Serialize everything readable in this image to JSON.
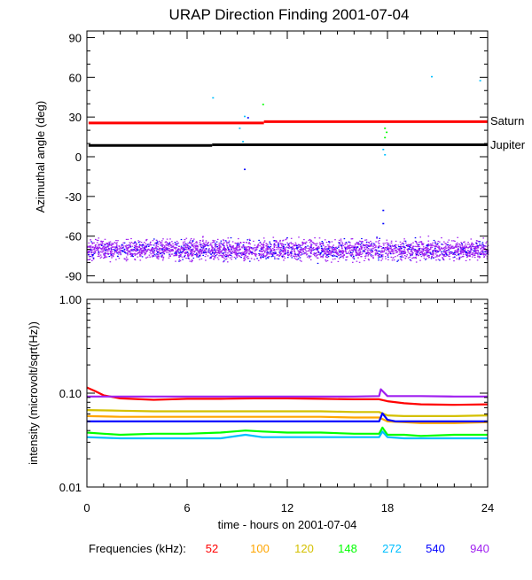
{
  "chart_data": [
    {
      "type": "scatter",
      "title": "URAP Direction Finding  2001-07-04",
      "xlabel": "",
      "ylabel": "Azimuthal angle (deg)",
      "xlim": [
        0,
        24
      ],
      "ylim": [
        -95,
        95
      ],
      "x_ticks": [
        0,
        6,
        12,
        18,
        24
      ],
      "y_ticks": [
        90,
        60,
        30,
        0,
        -30,
        -60,
        -90
      ],
      "y_tick_labels": [
        "90",
        "60",
        "30",
        "0",
        "-30",
        "-60",
        "-90"
      ],
      "reference_lines": [
        {
          "name": "Saturn",
          "color": "#ff0000",
          "segments": [
            {
              "x": [
                0.1,
                10.6
              ],
              "y": 25.5
            },
            {
              "x": 10.6,
              "y_end": 26.5,
              "x_end": 24
            }
          ]
        },
        {
          "name": "Jupiter",
          "color": "#000000",
          "segments": [
            {
              "x": [
                0.1,
                7.5
              ],
              "y": 8.5
            },
            {
              "x": 7.5,
              "y_end": 9,
              "x_end": 24
            }
          ]
        }
      ],
      "reference_line_labels": [
        "Saturn",
        "Jupiter"
      ],
      "band": {
        "description_range_deg": [
          -80,
          -60
        ],
        "center_deg": -70,
        "colors": [
          "#a020f0",
          "#0000ff"
        ]
      },
      "outliers": [
        {
          "x": 7.5,
          "y": 45,
          "color": "#00bfff"
        },
        {
          "x": 10.5,
          "y": 40,
          "color": "#00ff00"
        },
        {
          "x": 9.4,
          "y": 31,
          "color": "#00bfff"
        },
        {
          "x": 9.6,
          "y": 30,
          "color": "#0000ff"
        },
        {
          "x": 9.1,
          "y": 22,
          "color": "#00bfff"
        },
        {
          "x": 9.3,
          "y": 12,
          "color": "#00bfff"
        },
        {
          "x": 9.4,
          "y": -9,
          "color": "#0000ff"
        },
        {
          "x": 20.6,
          "y": 61,
          "color": "#00bfff"
        },
        {
          "x": 23.5,
          "y": 58,
          "color": "#00bfff"
        },
        {
          "x": 17.8,
          "y": 22,
          "color": "#00ff00"
        },
        {
          "x": 17.9,
          "y": 19,
          "color": "#00ff00"
        },
        {
          "x": 17.8,
          "y": 15,
          "color": "#00ff00"
        },
        {
          "x": 17.7,
          "y": 6,
          "color": "#00bfff"
        },
        {
          "x": 17.8,
          "y": 2,
          "color": "#00bfff"
        },
        {
          "x": 17.7,
          "y": -40,
          "color": "#0000ff"
        },
        {
          "x": 17.7,
          "y": -50,
          "color": "#0000ff"
        }
      ]
    },
    {
      "type": "line",
      "title": "",
      "xlabel": "time - hours on 2001-07-04",
      "ylabel": "intensity (microvolt/sqrt(Hz))",
      "y_scale": "log",
      "xlim": [
        0,
        24
      ],
      "ylim": [
        0.01,
        1.0
      ],
      "x_ticks": [
        0,
        6,
        12,
        18,
        24
      ],
      "x_tick_labels": [
        "0",
        "6",
        "12",
        "18",
        "24"
      ],
      "y_ticks": [
        1.0,
        0.1,
        0.01
      ],
      "y_tick_labels": [
        "1.00",
        "0.10",
        "0.01"
      ],
      "legend_title": "Frequencies (kHz):",
      "series": [
        {
          "name": "52",
          "color": "#ff0000",
          "x": [
            0,
            0.5,
            1,
            2,
            4,
            6,
            8,
            10,
            12,
            14,
            16,
            17.5,
            18,
            19,
            20,
            22,
            24
          ],
          "y": [
            0.115,
            0.105,
            0.095,
            0.088,
            0.085,
            0.087,
            0.087,
            0.088,
            0.088,
            0.087,
            0.086,
            0.086,
            0.082,
            0.078,
            0.076,
            0.075,
            0.076
          ]
        },
        {
          "name": "100",
          "color": "#ffa500",
          "x": [
            0,
            2,
            4,
            6,
            8,
            10,
            12,
            14,
            16,
            17.5,
            18,
            19,
            20,
            22,
            24
          ],
          "y": [
            0.057,
            0.056,
            0.056,
            0.056,
            0.056,
            0.056,
            0.056,
            0.056,
            0.055,
            0.055,
            0.05,
            0.049,
            0.048,
            0.048,
            0.049
          ]
        },
        {
          "name": "120",
          "color": "#d4c000",
          "x": [
            0,
            2,
            4,
            6,
            8,
            10,
            12,
            14,
            16,
            17.5,
            18,
            19,
            20,
            22,
            24
          ],
          "y": [
            0.066,
            0.065,
            0.064,
            0.064,
            0.064,
            0.064,
            0.064,
            0.064,
            0.063,
            0.063,
            0.058,
            0.057,
            0.057,
            0.057,
            0.058
          ]
        },
        {
          "name": "148",
          "color": "#00ff00",
          "x": [
            0,
            1,
            2,
            4,
            6,
            8,
            9.5,
            10.5,
            12,
            14,
            16,
            17.5,
            17.7,
            18,
            19,
            20,
            22,
            24
          ],
          "y": [
            0.038,
            0.037,
            0.036,
            0.037,
            0.037,
            0.038,
            0.04,
            0.039,
            0.038,
            0.038,
            0.037,
            0.037,
            0.043,
            0.036,
            0.036,
            0.035,
            0.036,
            0.036
          ]
        },
        {
          "name": "272",
          "color": "#00bfff",
          "x": [
            0,
            2,
            4,
            6,
            8,
            9.5,
            10.5,
            12,
            14,
            16,
            17.5,
            17.7,
            18,
            19,
            20,
            22,
            24
          ],
          "y": [
            0.034,
            0.033,
            0.033,
            0.033,
            0.033,
            0.036,
            0.034,
            0.034,
            0.034,
            0.034,
            0.034,
            0.039,
            0.034,
            0.033,
            0.033,
            0.033,
            0.033
          ]
        },
        {
          "name": "540",
          "color": "#0000ff",
          "x": [
            0,
            2,
            4,
            6,
            8,
            10,
            12,
            14,
            16,
            17.5,
            17.7,
            18,
            18.5,
            20,
            22,
            24
          ],
          "y": [
            0.05,
            0.05,
            0.05,
            0.05,
            0.05,
            0.05,
            0.05,
            0.05,
            0.05,
            0.05,
            0.061,
            0.052,
            0.05,
            0.05,
            0.05,
            0.05
          ]
        },
        {
          "name": "940",
          "color": "#a020f0",
          "x": [
            0,
            2,
            4,
            6,
            8,
            10,
            12,
            14,
            16,
            17.5,
            17.6,
            18,
            20,
            22,
            24
          ],
          "y": [
            0.092,
            0.092,
            0.092,
            0.092,
            0.092,
            0.092,
            0.092,
            0.092,
            0.092,
            0.093,
            0.11,
            0.093,
            0.093,
            0.092,
            0.092
          ]
        }
      ]
    }
  ]
}
